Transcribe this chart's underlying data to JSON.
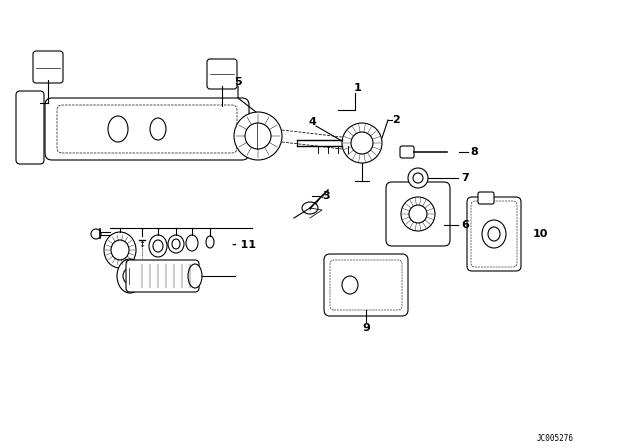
{
  "bg_color": "#ffffff",
  "line_color": "#000000",
  "fig_width": 6.4,
  "fig_height": 4.48,
  "dpi": 100,
  "watermark": "JC005276"
}
